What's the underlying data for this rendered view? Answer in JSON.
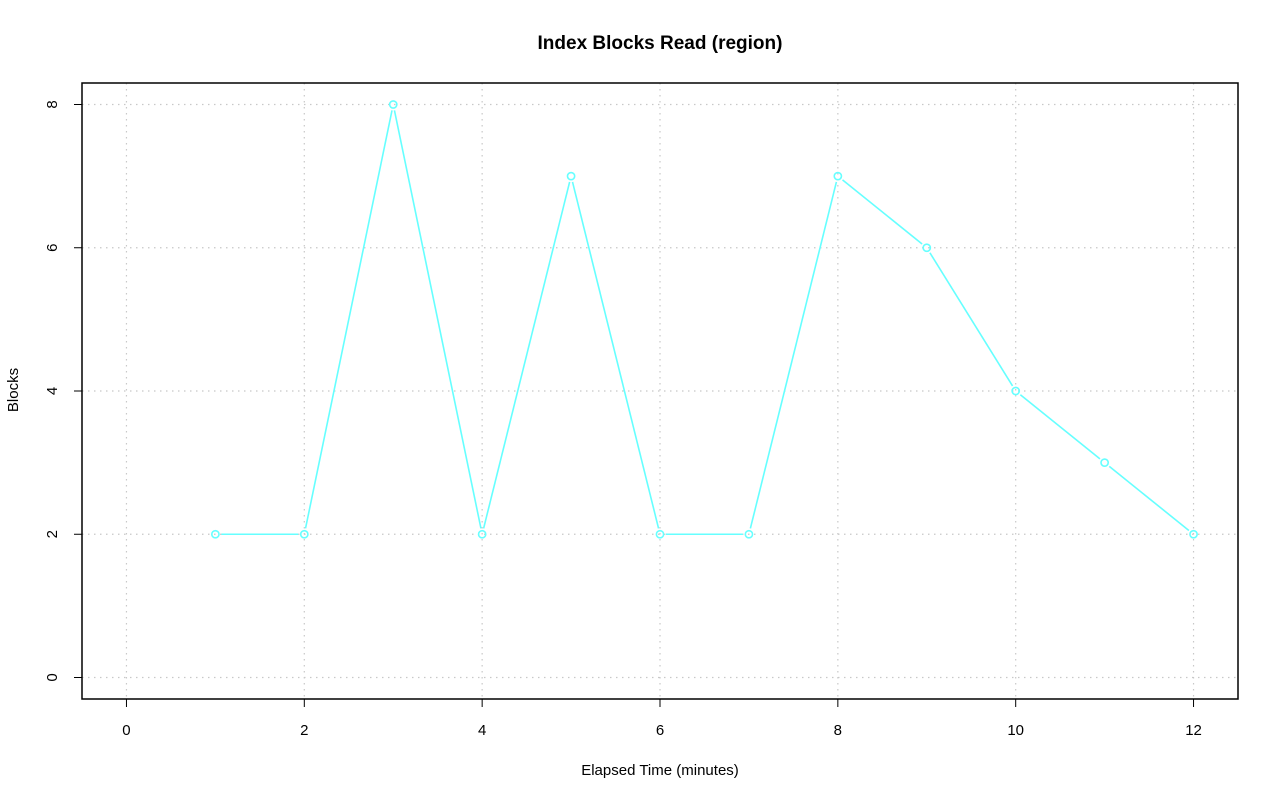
{
  "chart_data": {
    "type": "line",
    "title": "Index Blocks Read (region)",
    "xlabel": "Elapsed Time (minutes)",
    "ylabel": "Blocks",
    "xlim": [
      -0.5,
      12.5
    ],
    "ylim": [
      -0.3,
      8.3
    ],
    "xticks": [
      0,
      2,
      4,
      6,
      8,
      10,
      12
    ],
    "yticks": [
      0,
      2,
      4,
      6,
      8
    ],
    "grid": true,
    "series": [
      {
        "color": "#66ffff",
        "x": [
          1,
          2,
          3,
          4,
          5,
          6,
          7,
          8,
          9,
          10,
          11,
          12
        ],
        "y": [
          2,
          2,
          8,
          2,
          7,
          2,
          2,
          7,
          6,
          4,
          3,
          2
        ],
        "marker": "open-circle"
      }
    ]
  }
}
